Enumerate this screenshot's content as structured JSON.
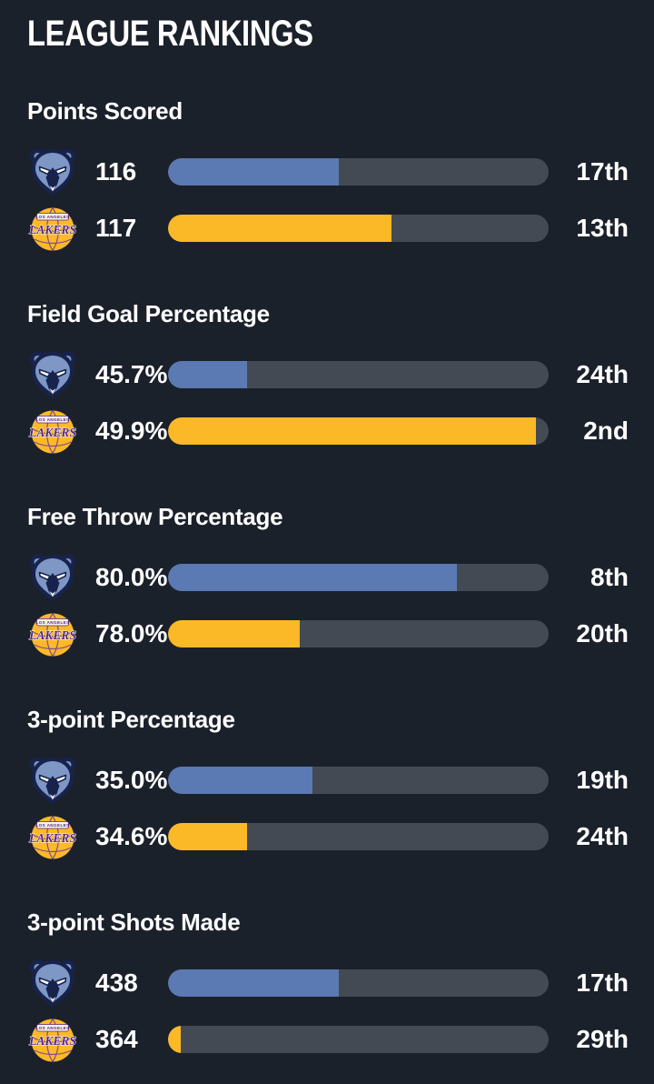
{
  "page": {
    "title": "LEAGUE RANKINGS",
    "background_color": "#1b212b",
    "track_color": "#444a54",
    "text_color": "#ffffff"
  },
  "teams": {
    "grizzlies": {
      "logo": "grizzlies-logo",
      "bar_color": "#5b79b2"
    },
    "lakers": {
      "logo": "lakers-logo",
      "bar_color": "#fcb927"
    }
  },
  "sections": [
    {
      "label": "Points Scored",
      "rows": [
        {
          "team": "grizzlies",
          "value": "116",
          "rank": "17th",
          "fill_pct": 44.8,
          "color": "#5b79b2"
        },
        {
          "team": "lakers",
          "value": "117",
          "rank": "13th",
          "fill_pct": 58.6,
          "color": "#fcb927"
        }
      ]
    },
    {
      "label": "Field Goal Percentage",
      "rows": [
        {
          "team": "grizzlies",
          "value": "45.7%",
          "rank": "24th",
          "fill_pct": 20.7,
          "color": "#5b79b2"
        },
        {
          "team": "lakers",
          "value": "49.9%",
          "rank": "2nd",
          "fill_pct": 96.6,
          "color": "#fcb927"
        }
      ]
    },
    {
      "label": "Free Throw Percentage",
      "rows": [
        {
          "team": "grizzlies",
          "value": "80.0%",
          "rank": "8th",
          "fill_pct": 75.9,
          "color": "#5b79b2"
        },
        {
          "team": "lakers",
          "value": "78.0%",
          "rank": "20th",
          "fill_pct": 34.5,
          "color": "#fcb927"
        }
      ]
    },
    {
      "label": "3-point Percentage",
      "rows": [
        {
          "team": "grizzlies",
          "value": "35.0%",
          "rank": "19th",
          "fill_pct": 37.9,
          "color": "#5b79b2"
        },
        {
          "team": "lakers",
          "value": "34.6%",
          "rank": "24th",
          "fill_pct": 20.7,
          "color": "#fcb927"
        }
      ]
    },
    {
      "label": "3-point Shots Made",
      "rows": [
        {
          "team": "grizzlies",
          "value": "438",
          "rank": "17th",
          "fill_pct": 44.8,
          "color": "#5b79b2"
        },
        {
          "team": "lakers",
          "value": "364",
          "rank": "29th",
          "fill_pct": 3.4,
          "color": "#fcb927"
        }
      ]
    }
  ],
  "chart_data": {
    "type": "bar",
    "title": "LEAGUE RANKINGS",
    "categories": [
      "Points Scored",
      "Field Goal Percentage",
      "Free Throw Percentage",
      "3-point Percentage",
      "3-point Shots Made"
    ],
    "series": [
      {
        "name": "grizzlies",
        "values": [
          "116",
          "45.7%",
          "80.0%",
          "35.0%",
          "438"
        ],
        "ranks": [
          "17th",
          "24th",
          "8th",
          "19th",
          "17th"
        ],
        "color": "#5b79b2"
      },
      {
        "name": "lakers",
        "values": [
          "117",
          "49.9%",
          "78.0%",
          "34.6%",
          "364"
        ],
        "ranks": [
          "13th",
          "2nd",
          "20th",
          "24th",
          "29th"
        ],
        "color": "#fcb927"
      }
    ],
    "note": "bar length encodes league rank out of 30 teams; longer bar = better rank"
  }
}
